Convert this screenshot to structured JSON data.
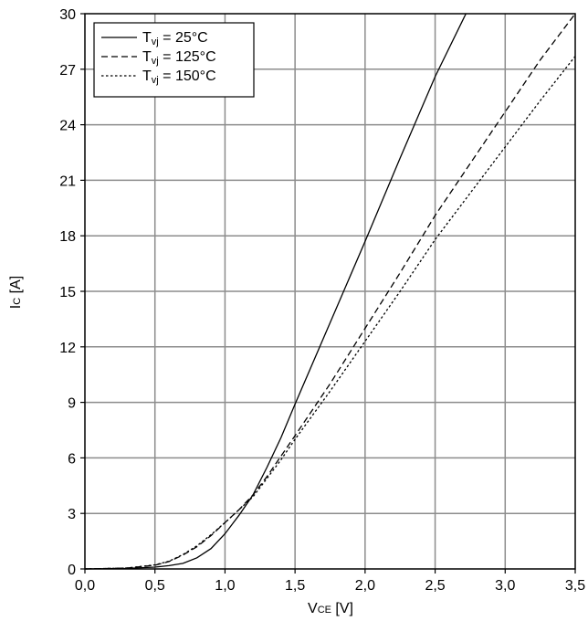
{
  "chart_data": {
    "type": "line",
    "xlabel": {
      "main": "V",
      "sub": "CE",
      "unit": " [V]"
    },
    "ylabel": {
      "main": "I",
      "sub": "C",
      "unit": " [A]"
    },
    "xlim": [
      0,
      3.5
    ],
    "ylim": [
      0,
      30
    ],
    "xticks": [
      "0,0",
      "0,5",
      "1,0",
      "1,5",
      "2,0",
      "2,5",
      "3,0",
      "3,5"
    ],
    "yticks": [
      "0",
      "3",
      "6",
      "9",
      "12",
      "15",
      "18",
      "21",
      "24",
      "27",
      "30"
    ],
    "grid": true,
    "legend_position": "top-left",
    "series": [
      {
        "name": "T_vj = 25°C",
        "label": {
          "pre": "T",
          "sub": "vj",
          "post": " = 25°C"
        },
        "dash": "solid",
        "x": [
          0,
          0.3,
          0.5,
          0.6,
          0.7,
          0.8,
          0.9,
          1.0,
          1.1,
          1.2,
          1.3,
          1.4,
          1.5,
          1.75,
          2.0,
          2.25,
          2.5,
          2.72
        ],
        "y": [
          0,
          0.03,
          0.1,
          0.18,
          0.3,
          0.6,
          1.1,
          1.9,
          2.9,
          4.0,
          5.5,
          7.1,
          8.9,
          13.3,
          17.7,
          22.2,
          26.6,
          30.0
        ]
      },
      {
        "name": "T_vj = 125°C",
        "label": {
          "pre": "T",
          "sub": "vj",
          "post": " = 125°C"
        },
        "dash": "dashed",
        "x": [
          0,
          0.3,
          0.5,
          0.6,
          0.7,
          0.8,
          0.9,
          1.0,
          1.1,
          1.2,
          1.3,
          1.4,
          1.5,
          1.75,
          2.0,
          2.25,
          2.5,
          2.75,
          3.0,
          3.25,
          3.5
        ],
        "y": [
          0,
          0.05,
          0.2,
          0.4,
          0.75,
          1.2,
          1.8,
          2.5,
          3.2,
          4.0,
          5.0,
          6.1,
          7.2,
          10.0,
          13.0,
          16.0,
          19.1,
          21.9,
          24.7,
          27.5,
          30.0
        ]
      },
      {
        "name": "T_vj = 150°C",
        "label": {
          "pre": "T",
          "sub": "vj",
          "post": " = 150°C"
        },
        "dash": "dotted",
        "x": [
          0,
          0.3,
          0.5,
          0.6,
          0.7,
          0.8,
          0.9,
          1.0,
          1.1,
          1.2,
          1.3,
          1.4,
          1.5,
          1.75,
          2.0,
          2.25,
          2.5,
          2.75,
          3.0,
          3.25,
          3.5
        ],
        "y": [
          0,
          0.05,
          0.22,
          0.42,
          0.78,
          1.25,
          1.85,
          2.5,
          3.2,
          3.9,
          4.9,
          5.9,
          7.0,
          9.6,
          12.3,
          15.0,
          17.8,
          20.3,
          22.8,
          25.3,
          27.7
        ]
      }
    ]
  }
}
